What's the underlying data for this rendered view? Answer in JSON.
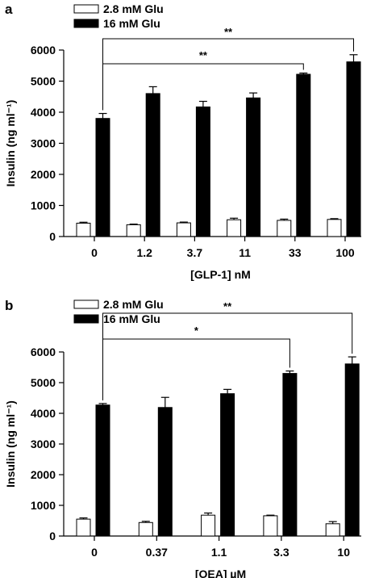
{
  "chart_data": [
    {
      "panel_label": "a",
      "type": "bar",
      "categories": [
        "0",
        "1.2",
        "3.7",
        "11",
        "33",
        "100"
      ],
      "xlabel": "[GLP-1] nM",
      "ylabel": "Insulin (ng ml⁻¹)",
      "ylim": [
        0,
        6000
      ],
      "yticks": [
        "0",
        "1000",
        "2000",
        "3000",
        "4000",
        "5000",
        "6000"
      ],
      "legend_position": "top-left",
      "series": [
        {
          "name": "2.8 mM Glu",
          "color": "#ffffff",
          "values": [
            430,
            380,
            440,
            540,
            520,
            550
          ],
          "errors": [
            30,
            20,
            25,
            50,
            40,
            25
          ]
        },
        {
          "name": "16 mM Glu",
          "color": "#000000",
          "values": [
            3800,
            4600,
            4170,
            4460,
            5220,
            5620
          ],
          "errors": [
            160,
            220,
            180,
            160,
            40,
            230
          ]
        }
      ],
      "significance": [
        {
          "from": "0",
          "to": "33",
          "label": "**"
        },
        {
          "from": "0",
          "to": "100",
          "label": "**"
        }
      ]
    },
    {
      "panel_label": "b",
      "type": "bar",
      "categories": [
        "0",
        "0.37",
        "1.1",
        "3.3",
        "10"
      ],
      "xlabel": "[OEA] µM",
      "ylabel": "Insulin (ng ml⁻¹)",
      "ylim": [
        0,
        6000
      ],
      "yticks": [
        "0",
        "1000",
        "2000",
        "3000",
        "4000",
        "5000",
        "6000"
      ],
      "legend_position": "top-left",
      "series": [
        {
          "name": "2.8 mM Glu",
          "color": "#ffffff",
          "values": [
            550,
            440,
            680,
            660,
            400
          ],
          "errors": [
            40,
            40,
            70,
            20,
            70
          ]
        },
        {
          "name": "16 mM Glu",
          "color": "#000000",
          "values": [
            4270,
            4190,
            4640,
            5300,
            5610
          ],
          "errors": [
            50,
            330,
            140,
            80,
            230
          ]
        }
      ],
      "significance": [
        {
          "from": "0",
          "to": "3.3",
          "label": "*"
        },
        {
          "from": "0",
          "to": "10",
          "label": "**"
        }
      ]
    }
  ]
}
